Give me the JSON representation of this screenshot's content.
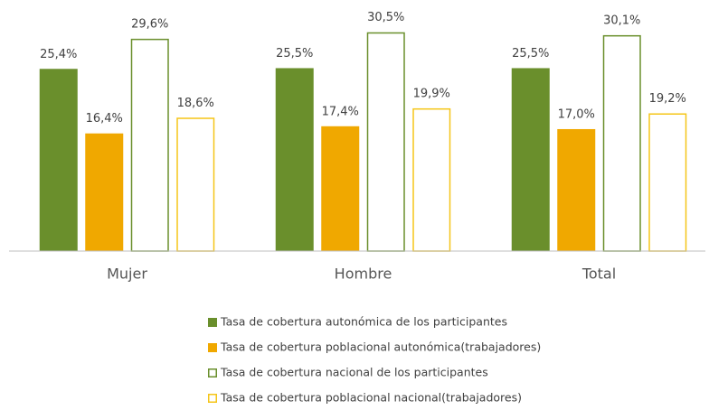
{
  "chart_data": {
    "type": "bar",
    "categories": [
      "Mujer",
      "Hombre",
      "Total"
    ],
    "ylim": [
      0,
      35
    ],
    "series": [
      {
        "name": "Tasa de cobertura autonómica de los participantes",
        "color": "#6a8f2c",
        "hollow": false,
        "values": [
          25.4,
          25.5,
          25.5
        ],
        "value_labels": [
          "25,4%",
          "25,5%",
          "25,5%"
        ]
      },
      {
        "name": "Tasa de cobertura poblacional autonómica(trabajadores)",
        "color": "#f0a800",
        "hollow": false,
        "values": [
          16.4,
          17.4,
          17.0
        ],
        "value_labels": [
          "16,4%",
          "17,4%",
          "17,0%"
        ]
      },
      {
        "name": "Tasa de cobertura nacional de los participantes",
        "color": "#6a8f2c",
        "hollow": true,
        "values": [
          29.6,
          30.5,
          30.1
        ],
        "value_labels": [
          "29,6%",
          "30,5%",
          "30,1%"
        ]
      },
      {
        "name": "Tasa de cobertura poblacional nacional(trabajadores)",
        "color": "#f5c518",
        "hollow": true,
        "values": [
          18.6,
          19.9,
          19.2
        ],
        "value_labels": [
          "18,6%",
          "19,9%",
          "19,2%"
        ]
      }
    ]
  }
}
